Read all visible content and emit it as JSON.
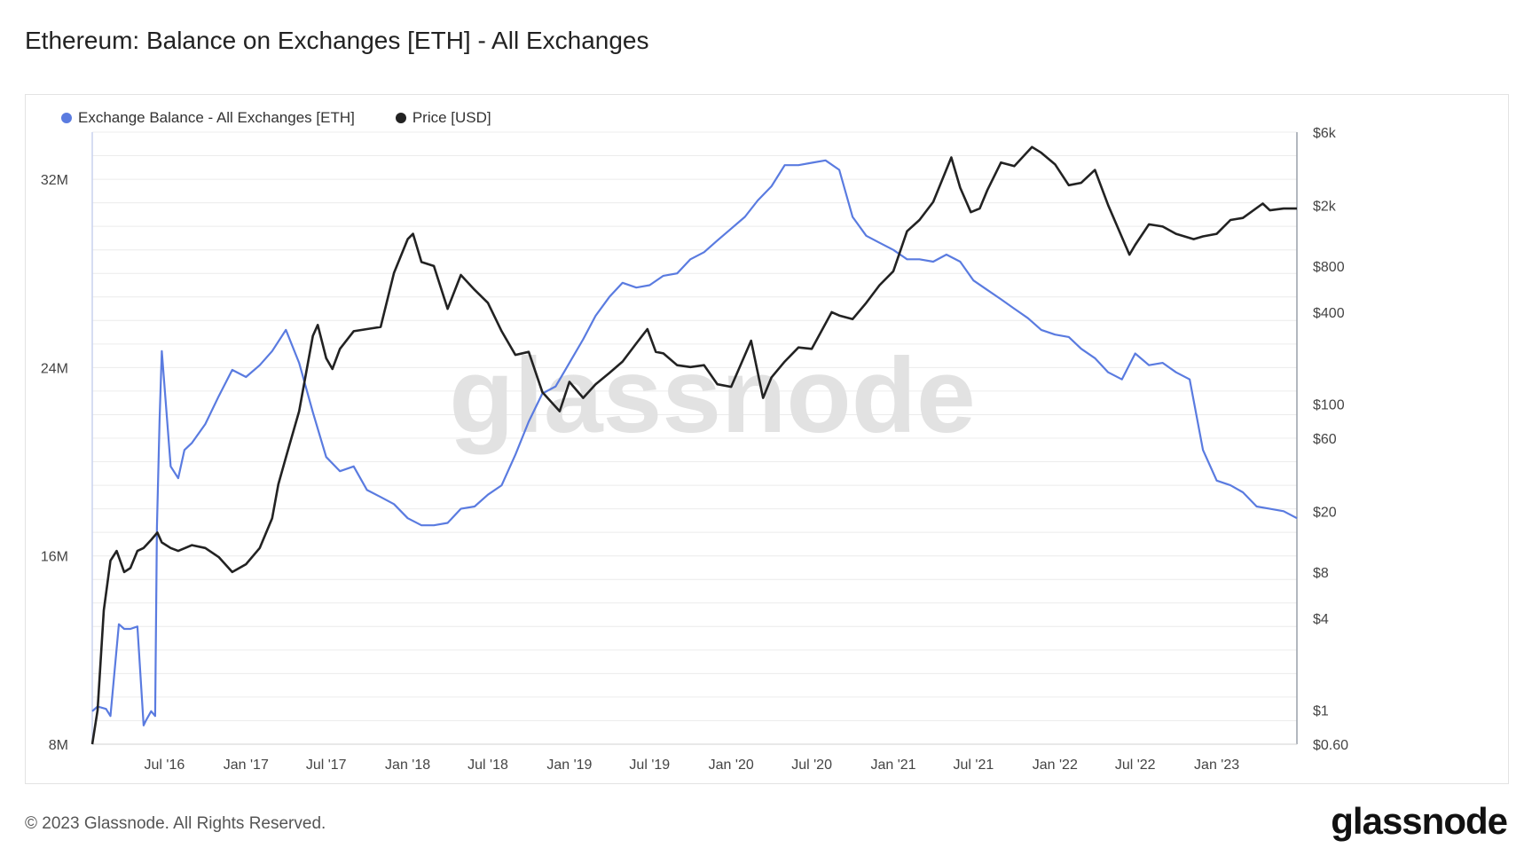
{
  "title": "Ethereum: Balance on Exchanges [ETH] - All Exchanges",
  "footer": "© 2023 Glassnode. All Rights Reserved.",
  "logo_text": "glassnode",
  "watermark": "glassnode",
  "colors": {
    "balance": "#5a7be0",
    "price": "#222222",
    "grid": "#ececec",
    "axis_text": "#444444"
  },
  "chart_data": {
    "type": "line",
    "legend": [
      {
        "name": "Exchange Balance - All Exchanges [ETH]",
        "color": "#5a7be0"
      },
      {
        "name": "Price [USD]",
        "color": "#222222"
      }
    ],
    "legend_position": "top-left",
    "grid": true,
    "x_ticks": [
      "Jul '16",
      "Jan '17",
      "Jul '17",
      "Jan '18",
      "Jul '18",
      "Jan '19",
      "Jul '19",
      "Jan '20",
      "Jul '20",
      "Jan '21",
      "Jul '21",
      "Jan '22",
      "Jul '22",
      "Jan '23"
    ],
    "x_tick_dates": [
      "2016-07-01",
      "2017-01-01",
      "2017-07-01",
      "2018-01-01",
      "2018-07-01",
      "2019-01-01",
      "2019-07-01",
      "2020-01-01",
      "2020-07-01",
      "2021-01-01",
      "2021-07-01",
      "2022-01-01",
      "2022-07-01",
      "2023-01-01"
    ],
    "x_range": [
      "2016-01-20",
      "2023-07-01"
    ],
    "left_axis": {
      "ticks": [
        8000000,
        16000000,
        24000000,
        32000000
      ],
      "tick_labels": [
        "8M",
        "16M",
        "24M",
        "32M"
      ],
      "range": [
        8000000,
        34000000
      ]
    },
    "right_axis": {
      "scale": "log",
      "ticks": [
        0.6,
        1,
        4,
        8,
        20,
        60,
        100,
        400,
        800,
        2000,
        6000
      ],
      "tick_labels": [
        "$0.60",
        "$1",
        "$4",
        "$8",
        "$20",
        "$60",
        "$100",
        "$400",
        "$800",
        "$2k",
        "$6k"
      ],
      "range": [
        0.6,
        6000
      ]
    },
    "series": [
      {
        "name": "Exchange Balance - All Exchanges [ETH]",
        "axis": "left",
        "x": [
          "2016-01-20",
          "2016-02-01",
          "2016-02-20",
          "2016-03-01",
          "2016-03-20",
          "2016-04-01",
          "2016-04-15",
          "2016-05-01",
          "2016-05-15",
          "2016-05-20",
          "2016-06-01",
          "2016-06-10",
          "2016-06-14",
          "2016-06-20",
          "2016-06-25",
          "2016-07-15",
          "2016-08-01",
          "2016-08-15",
          "2016-09-01",
          "2016-10-01",
          "2016-11-01",
          "2016-12-01",
          "2017-01-01",
          "2017-02-01",
          "2017-03-01",
          "2017-04-01",
          "2017-05-01",
          "2017-06-01",
          "2017-07-01",
          "2017-08-01",
          "2017-09-01",
          "2017-10-01",
          "2017-11-01",
          "2017-12-01",
          "2018-01-01",
          "2018-02-01",
          "2018-03-01",
          "2018-04-01",
          "2018-05-01",
          "2018-06-01",
          "2018-07-01",
          "2018-08-01",
          "2018-09-01",
          "2018-10-01",
          "2018-11-01",
          "2018-12-01",
          "2019-01-01",
          "2019-02-01",
          "2019-03-01",
          "2019-04-01",
          "2019-05-01",
          "2019-06-01",
          "2019-07-01",
          "2019-08-01",
          "2019-09-01",
          "2019-10-01",
          "2019-11-01",
          "2019-12-01",
          "2020-01-01",
          "2020-02-01",
          "2020-03-01",
          "2020-04-01",
          "2020-05-01",
          "2020-06-01",
          "2020-07-01",
          "2020-08-01",
          "2020-09-01",
          "2020-10-01",
          "2020-11-01",
          "2020-12-01",
          "2021-01-01",
          "2021-02-01",
          "2021-03-01",
          "2021-04-01",
          "2021-05-01",
          "2021-06-01",
          "2021-07-01",
          "2021-08-01",
          "2021-09-01",
          "2021-10-01",
          "2021-11-01",
          "2021-12-01",
          "2022-01-01",
          "2022-02-01",
          "2022-03-01",
          "2022-04-01",
          "2022-05-01",
          "2022-06-01",
          "2022-07-01",
          "2022-08-01",
          "2022-09-01",
          "2022-10-01",
          "2022-11-01",
          "2022-12-01",
          "2023-01-01",
          "2023-02-01",
          "2023-03-01",
          "2023-04-01",
          "2023-05-01",
          "2023-06-01",
          "2023-07-01"
        ],
        "values": [
          9.4,
          9.6,
          9.5,
          9.2,
          13.1,
          12.9,
          12.9,
          13.0,
          8.8,
          9.0,
          9.4,
          9.2,
          17.2,
          21.8,
          24.7,
          19.8,
          19.3,
          20.5,
          20.8,
          21.6,
          22.8,
          23.9,
          23.6,
          24.1,
          24.7,
          25.6,
          24.2,
          22.1,
          20.2,
          19.6,
          19.8,
          18.8,
          18.5,
          18.2,
          17.6,
          17.3,
          17.3,
          17.4,
          18.0,
          18.1,
          18.6,
          19.0,
          20.3,
          21.7,
          22.9,
          23.2,
          24.2,
          25.2,
          26.2,
          27.0,
          27.6,
          27.4,
          27.5,
          27.9,
          28.0,
          28.6,
          28.9,
          29.4,
          29.9,
          30.4,
          31.1,
          31.7,
          32.6,
          32.6,
          32.7,
          32.8,
          32.4,
          30.4,
          29.6,
          29.3,
          29.0,
          28.6,
          28.6,
          28.5,
          28.8,
          28.5,
          27.7,
          27.3,
          26.9,
          26.5,
          26.1,
          25.6,
          25.4,
          25.3,
          24.8,
          24.4,
          23.8,
          23.5,
          24.6,
          24.1,
          24.2,
          23.8,
          23.5,
          20.5,
          19.2,
          19.0,
          18.7,
          18.1,
          18.0,
          17.9,
          17.6
        ]
      },
      {
        "name": "Price [USD]",
        "axis": "right",
        "x": [
          "2016-01-20",
          "2016-02-01",
          "2016-02-15",
          "2016-03-01",
          "2016-03-15",
          "2016-04-01",
          "2016-04-15",
          "2016-05-01",
          "2016-05-15",
          "2016-06-01",
          "2016-06-15",
          "2016-06-25",
          "2016-07-15",
          "2016-08-01",
          "2016-09-01",
          "2016-10-01",
          "2016-11-01",
          "2016-12-01",
          "2017-01-01",
          "2017-02-01",
          "2017-03-01",
          "2017-03-15",
          "2017-04-01",
          "2017-05-01",
          "2017-06-01",
          "2017-06-12",
          "2017-07-01",
          "2017-07-15",
          "2017-08-01",
          "2017-09-01",
          "2017-10-01",
          "2017-11-01",
          "2017-12-01",
          "2018-01-01",
          "2018-01-13",
          "2018-02-01",
          "2018-03-01",
          "2018-04-01",
          "2018-05-01",
          "2018-06-01",
          "2018-07-01",
          "2018-08-01",
          "2018-09-01",
          "2018-10-01",
          "2018-11-01",
          "2018-12-10",
          "2019-01-01",
          "2019-02-01",
          "2019-03-01",
          "2019-04-01",
          "2019-05-01",
          "2019-06-01",
          "2019-06-26",
          "2019-07-15",
          "2019-08-01",
          "2019-09-01",
          "2019-10-01",
          "2019-11-01",
          "2019-12-01",
          "2020-01-01",
          "2020-02-15",
          "2020-03-13",
          "2020-04-01",
          "2020-05-01",
          "2020-06-01",
          "2020-07-01",
          "2020-08-15",
          "2020-09-01",
          "2020-10-01",
          "2020-11-01",
          "2020-12-01",
          "2021-01-01",
          "2021-02-01",
          "2021-03-01",
          "2021-04-01",
          "2021-05-12",
          "2021-06-01",
          "2021-06-25",
          "2021-07-15",
          "2021-08-01",
          "2021-09-01",
          "2021-10-01",
          "2021-11-10",
          "2021-12-01",
          "2022-01-01",
          "2022-02-01",
          "2022-03-01",
          "2022-04-01",
          "2022-05-01",
          "2022-06-18",
          "2022-07-01",
          "2022-08-01",
          "2022-09-01",
          "2022-10-01",
          "2022-11-10",
          "2022-12-01",
          "2023-01-01",
          "2023-02-01",
          "2023-03-01",
          "2023-04-15",
          "2023-05-01",
          "2023-06-01",
          "2023-07-01"
        ],
        "values": [
          0.6,
          1.0,
          4.5,
          9.5,
          11.0,
          8.0,
          8.5,
          11.0,
          11.5,
          13.0,
          14.5,
          12.5,
          11.5,
          11.0,
          12.0,
          11.5,
          10.0,
          8.0,
          9.0,
          11.5,
          18.0,
          30.0,
          45.0,
          90.0,
          280.0,
          330.0,
          200.0,
          170.0,
          230.0,
          300.0,
          310.0,
          320.0,
          720.0,
          1200.0,
          1300.0,
          850.0,
          800.0,
          420.0,
          700.0,
          560.0,
          460.0,
          300.0,
          210.0,
          220.0,
          120.0,
          90.0,
          140.0,
          110.0,
          135.0,
          160.0,
          190.0,
          250.0,
          310.0,
          220.0,
          215.0,
          180.0,
          175.0,
          180.0,
          135.0,
          130.0,
          260.0,
          110.0,
          150.0,
          190.0,
          235.0,
          230.0,
          400.0,
          380.0,
          360.0,
          460.0,
          600.0,
          740.0,
          1350.0,
          1600.0,
          2100.0,
          4100.0,
          2600.0,
          1800.0,
          1900.0,
          2500.0,
          3800.0,
          3600.0,
          4800.0,
          4400.0,
          3700.0,
          2700.0,
          2800.0,
          3400.0,
          2000.0,
          950.0,
          1100.0,
          1500.0,
          1450.0,
          1300.0,
          1200.0,
          1250.0,
          1300.0,
          1600.0,
          1650.0,
          2050.0,
          1850.0,
          1900.0,
          1900.0
        ]
      }
    ]
  }
}
